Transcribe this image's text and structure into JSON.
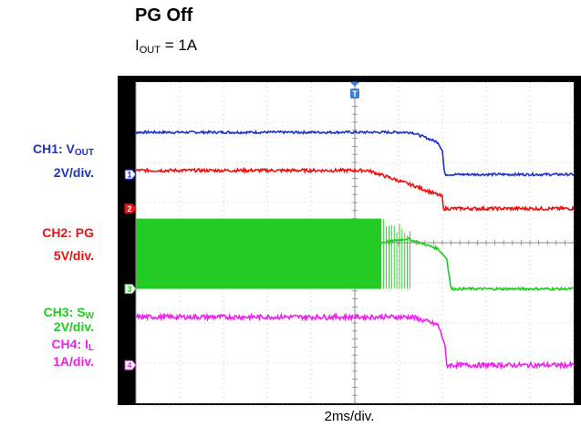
{
  "title": "PG Off",
  "subtitle": {
    "prefix": "I",
    "sub": "OUT",
    "suffix": " = 1A"
  },
  "channels": [
    {
      "id": "ch1",
      "name_prefix": "CH1: V",
      "name_sub": "OUT",
      "scale": "2V/div.",
      "color": "#1f33c6",
      "marker": "1"
    },
    {
      "id": "ch2",
      "name_prefix": "CH2: PG",
      "name_sub": "",
      "scale": "5V/div.",
      "color": "#ee1111",
      "marker": "2"
    },
    {
      "id": "ch3",
      "name_prefix": "CH3: S",
      "name_sub": "W",
      "scale": "2V/div.",
      "color": "#22cc22",
      "marker": "3"
    },
    {
      "id": "ch4",
      "name_prefix": "CH4: I",
      "name_sub": "L",
      "scale": "1A/div.",
      "color": "#ee22ee",
      "marker": "4"
    }
  ],
  "trigger_marker": "T",
  "x_axis_label": "2ms/div.",
  "chart_data": {
    "type": "line",
    "xlabel": "2ms/div.",
    "x_unit": "div",
    "xlim": [
      0,
      10
    ],
    "ylim": [
      0,
      8
    ],
    "grid": true,
    "x_divisions": 10,
    "y_divisions": 8,
    "series": [
      {
        "name": "CH1: VOUT",
        "scale": "2V/div.",
        "points": [
          [
            0,
            6.75
          ],
          [
            6.3,
            6.75
          ],
          [
            6.9,
            6.5
          ],
          [
            7.0,
            6.3
          ],
          [
            7.05,
            5.7
          ],
          [
            10,
            5.7
          ]
        ]
      },
      {
        "name": "CH2: PG",
        "scale": "5V/div.",
        "points": [
          [
            0,
            5.8
          ],
          [
            5.3,
            5.8
          ],
          [
            6.4,
            5.4
          ],
          [
            7.0,
            5.15
          ],
          [
            7.0,
            4.85
          ],
          [
            10,
            4.85
          ]
        ]
      },
      {
        "name": "CH3: SW",
        "scale": "2V/div.",
        "switching_region": [
          0,
          5.6
        ],
        "envelope_low": 2.85,
        "envelope_high": 4.6,
        "points": [
          [
            5.6,
            4.0
          ],
          [
            6.2,
            4.1
          ],
          [
            6.9,
            3.85
          ],
          [
            7.1,
            3.6
          ],
          [
            7.2,
            2.85
          ],
          [
            10,
            2.85
          ]
        ]
      },
      {
        "name": "CH4: IL",
        "scale": "1A/div.",
        "points": [
          [
            0,
            2.15
          ],
          [
            6.3,
            2.15
          ],
          [
            6.9,
            1.95
          ],
          [
            7.05,
            1.5
          ],
          [
            7.1,
            0.95
          ],
          [
            10,
            0.95
          ]
        ]
      }
    ]
  }
}
